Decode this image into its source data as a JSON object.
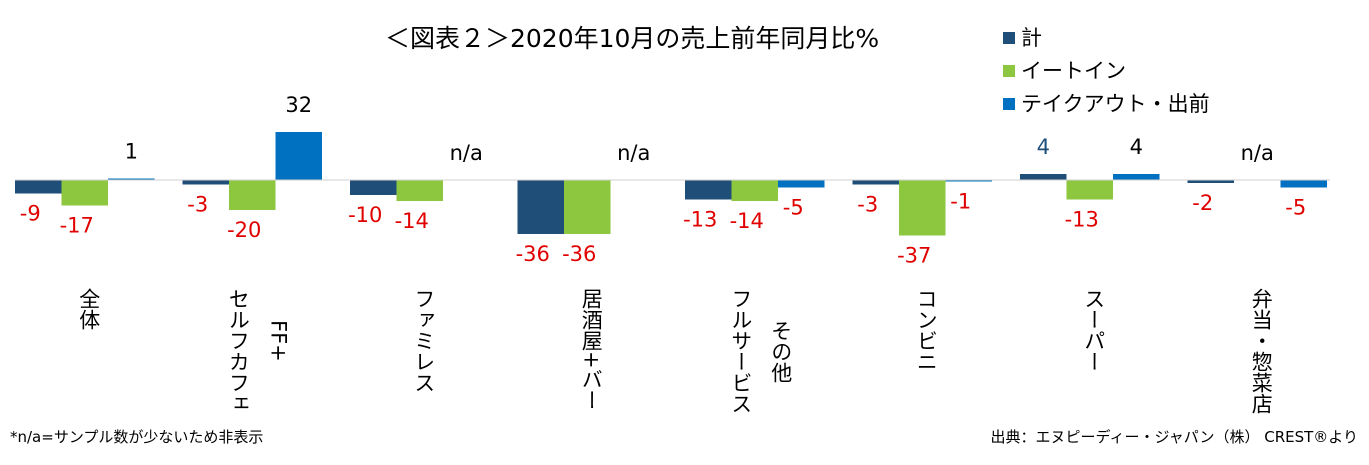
{
  "chart_data": {
    "type": "bar",
    "title": "＜図表２＞2020年10月の売上前年同月比%",
    "categories": [
      "全体",
      "セルフカフェ FF+",
      "ファミレス",
      "居酒屋+バー",
      "フルサービス その他",
      "コンビニ",
      "スーパー",
      "弁当・惣菜店"
    ],
    "category_lines": [
      [
        "全体"
      ],
      [
        "セルフカフェ",
        "FF+"
      ],
      [
        "ファミレス"
      ],
      [
        "居酒屋+バー"
      ],
      [
        "フルサービス",
        "その他"
      ],
      [
        "コンビニ"
      ],
      [
        "スーパー"
      ],
      [
        "弁当・惣菜店"
      ]
    ],
    "series": [
      {
        "name": "計",
        "color": "#1F4E79",
        "values": [
          -9,
          -3,
          -10,
          -36,
          -13,
          -3,
          4,
          -2
        ]
      },
      {
        "name": "イートイン",
        "color": "#8DC63F",
        "values": [
          -17,
          -20,
          -14,
          -36,
          -14,
          -37,
          -13,
          null
        ]
      },
      {
        "name": "テイクアウト・出前",
        "color": "#0070C0",
        "values": [
          1,
          32,
          null,
          null,
          -5,
          -1,
          4,
          -5
        ]
      }
    ],
    "na_label": "n/a",
    "negative_label_color": "#E00000",
    "positive_label_color": "#000000",
    "highlight_label_color": "#1F4E79",
    "legend_position": "top-right",
    "grid": false
  },
  "footnote": "*n/a=サンプル数が少ないため非表示",
  "source": "出典：エヌピーディー・ジャパン（株） CREST®より"
}
